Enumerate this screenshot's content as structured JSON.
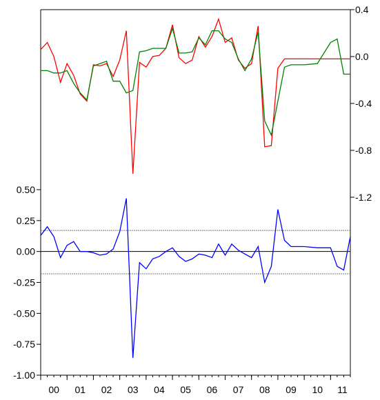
{
  "chart_data": {
    "type": "line",
    "x_labels": [
      "00",
      "01",
      "02",
      "03",
      "04",
      "05",
      "06",
      "07",
      "08",
      "09",
      "10",
      "11"
    ],
    "right_axis": {
      "ticks": [
        0.4,
        0.0,
        -0.4,
        -0.8,
        -1.2
      ],
      "tick_labels": [
        "0.4",
        "0.0",
        "-0.4",
        "-0.8",
        "-1.2"
      ],
      "range": [
        -1.2,
        0.4
      ]
    },
    "left_axis": {
      "ticks": [
        0.5,
        0.25,
        0.0,
        -0.25,
        -0.5,
        -0.75,
        -1.0
      ],
      "tick_labels": [
        "0.50",
        "0.25",
        "0.00",
        "-0.25",
        "-0.50",
        "-0.75",
        "-1.00"
      ],
      "range": [
        -1.0,
        0.5
      ]
    },
    "reference_lines": {
      "zero": 0.0,
      "band_upper": 0.17,
      "band_lower": -0.18
    },
    "x": [
      2000.0,
      2000.25,
      2000.5,
      2000.75,
      2001.0,
      2001.25,
      2001.5,
      2001.75,
      2002.0,
      2002.25,
      2002.5,
      2002.75,
      2003.0,
      2003.25,
      2003.5,
      2003.75,
      2004.0,
      2004.25,
      2004.5,
      2004.75,
      2005.0,
      2005.25,
      2005.5,
      2005.75,
      2006.0,
      2006.25,
      2006.5,
      2006.75,
      2007.0,
      2007.25,
      2007.5,
      2007.75,
      2008.0,
      2008.25,
      2008.5,
      2008.75,
      2009.0,
      2009.25,
      2009.5,
      2010.0,
      2010.5,
      2011.0,
      2011.25,
      2011.5,
      2011.75
    ],
    "series": [
      {
        "axis": "right",
        "color": "#ff0000",
        "values": [
          0.06,
          0.12,
          0.0,
          -0.22,
          -0.06,
          -0.16,
          -0.32,
          -0.38,
          -0.07,
          -0.08,
          -0.06,
          -0.17,
          -0.03,
          0.22,
          -1.0,
          -0.05,
          -0.09,
          0.0,
          0.01,
          0.07,
          0.27,
          -0.01,
          -0.06,
          -0.03,
          0.17,
          0.08,
          0.17,
          0.32,
          0.12,
          0.16,
          -0.03,
          -0.1,
          -0.06,
          0.26,
          -0.77,
          -0.76,
          -0.1,
          -0.02,
          -0.02,
          -0.02,
          -0.02,
          -0.02,
          -0.02,
          -0.02,
          -0.02
        ]
      },
      {
        "axis": "right",
        "color": "#008000",
        "values": [
          -0.12,
          -0.12,
          -0.14,
          -0.14,
          -0.12,
          -0.23,
          -0.31,
          -0.37,
          -0.08,
          -0.06,
          -0.04,
          -0.21,
          -0.21,
          -0.31,
          -0.29,
          0.04,
          0.05,
          0.07,
          0.07,
          0.07,
          0.24,
          0.03,
          0.03,
          0.04,
          0.16,
          0.1,
          0.22,
          0.22,
          0.15,
          0.12,
          -0.02,
          -0.12,
          -0.02,
          0.21,
          -0.55,
          -0.67,
          -0.38,
          -0.09,
          -0.07,
          -0.07,
          -0.06,
          0.12,
          0.15,
          -0.15,
          -0.15
        ]
      },
      {
        "axis": "left",
        "color": "#0000ff",
        "values": [
          0.13,
          0.2,
          0.12,
          -0.05,
          0.05,
          0.08,
          0.0,
          0.0,
          -0.01,
          -0.03,
          -0.02,
          0.02,
          0.16,
          0.43,
          -0.86,
          -0.09,
          -0.14,
          -0.06,
          -0.04,
          0.0,
          0.03,
          -0.04,
          -0.08,
          -0.06,
          -0.02,
          -0.03,
          -0.05,
          0.06,
          -0.03,
          0.06,
          0.01,
          -0.02,
          -0.05,
          0.04,
          -0.25,
          -0.12,
          0.34,
          0.09,
          0.04,
          0.04,
          0.03,
          0.03,
          -0.12,
          -0.15,
          0.12
        ]
      }
    ]
  }
}
